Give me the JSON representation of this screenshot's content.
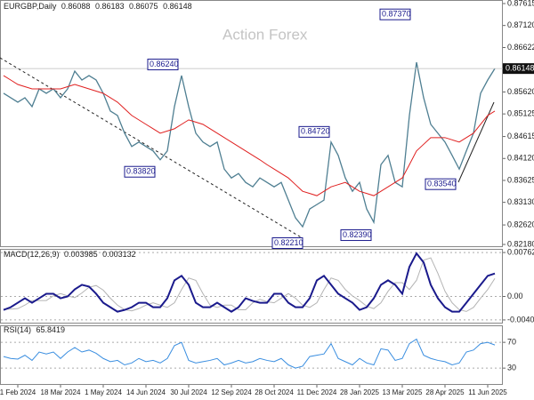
{
  "chart_data": [
    {
      "type": "line",
      "symbol": "EURGBP,Daily",
      "header_values": [
        0.86088,
        0.86183,
        0.86075,
        0.86148
      ],
      "watermark": "Action Forex",
      "categories": [
        null,
        null,
        "1 Feb 2024",
        null,
        null,
        null,
        null,
        null,
        "18 Mar 2024",
        null,
        null,
        null,
        null,
        null,
        "1 May 2024",
        null,
        null,
        null,
        null,
        null,
        "14 Jun 2024",
        null,
        null,
        null,
        null,
        null,
        "30 Jul 2024",
        null,
        null,
        null,
        null,
        null,
        "12 Sep 2024",
        null,
        null,
        null,
        null,
        null,
        "28 Oct 2024",
        null,
        null,
        null,
        null,
        null,
        "11 Dec 2024",
        null,
        null,
        null,
        null,
        null,
        "28 Jan 2025",
        null,
        null,
        null,
        null,
        null,
        "13 Mar 2025",
        null,
        null,
        null,
        null,
        null,
        "28 Apr 2025",
        null,
        null,
        null,
        null,
        null,
        "11 Jun 2025",
        null
      ],
      "series": [
        {
          "color": "#4f7f92",
          "values": [
            0.8559,
            0.8549,
            0.8539,
            0.8549,
            0.8529,
            0.8569,
            0.8559,
            0.8569,
            0.8549,
            0.8569,
            0.8609,
            0.8589,
            0.8599,
            0.8589,
            0.8559,
            0.8519,
            0.8509,
            0.8469,
            0.8439,
            0.8449,
            0.8439,
            0.8429,
            0.8409,
            0.8429,
            0.8529,
            0.8599,
            0.8529,
            0.8469,
            0.8449,
            0.8439,
            0.8449,
            0.8388,
            0.8368,
            0.8378,
            0.8358,
            0.8348,
            0.8368,
            0.8358,
            0.8348,
            0.8358,
            0.8318,
            0.8278,
            0.8258,
            0.8298,
            0.8308,
            0.8318,
            0.8449,
            0.8419,
            0.8368,
            0.8338,
            0.8358,
            0.8298,
            0.8268,
            0.8398,
            0.8419,
            0.8358,
            0.8348,
            0.8509,
            0.8629,
            0.8549,
            0.8489,
            0.8469,
            0.8449,
            0.8419,
            0.8388,
            0.8429,
            0.8469,
            0.8559,
            0.8589,
            0.86148
          ]
        },
        {
          "color": "#e02020",
          "values": [
            0.8599,
            0.8589,
            0.8579,
            0.8574,
            0.8569,
            0.8569,
            0.8569,
            0.8569,
            0.8569,
            0.8574,
            0.8579,
            0.8574,
            0.8569,
            0.8564,
            0.8559,
            0.8549,
            0.8539,
            0.8524,
            0.8509,
            0.8499,
            0.8489,
            0.8479,
            0.8469,
            0.8474,
            0.8479,
            0.8489,
            0.8499,
            0.8494,
            0.8489,
            0.8479,
            0.8469,
            0.8459,
            0.8449,
            0.8439,
            0.8429,
            0.8419,
            0.8409,
            0.8398,
            0.8388,
            0.8378,
            0.8368,
            0.8353,
            0.8338,
            0.8333,
            0.8328,
            0.8338,
            0.8348,
            0.8353,
            0.8358,
            0.8348,
            0.8338,
            0.8333,
            0.8328,
            0.8338,
            0.8348,
            0.8358,
            0.8368,
            0.8398,
            0.8429,
            0.8444,
            0.8459,
            0.8459,
            0.8459,
            0.8454,
            0.8449,
            0.8459,
            0.8469,
            0.8489,
            0.8509,
            0.8519
          ]
        }
      ],
      "ylim": [
        0.8212,
        0.87695
      ],
      "yticks": [
        0.87615,
        {
          "value": 0.8712,
          "label": "0.87120"
        },
        0.86622,
        {
          "value": 0.8562,
          "label": "0.85620"
        },
        0.85125,
        0.84615,
        {
          "value": 0.8412,
          "label": "0.84120"
        },
        0.83625,
        {
          "value": 0.8313,
          "label": "0.83130"
        },
        {
          "value": 0.8262,
          "label": "0.82620"
        },
        {
          "value": 0.8218,
          "label": "0.82180"
        }
      ],
      "annotations": [
        {
          "value": 0.8737,
          "label": "0.87370"
        },
        {
          "value": 0.8624,
          "label": "0.86240"
        },
        {
          "value": 0.8382,
          "label": "0.83820"
        },
        {
          "value": 0.8472,
          "label": "0.84720"
        },
        {
          "value": 0.8221,
          "label": "0.82210"
        },
        {
          "value": 0.8239,
          "label": "0.82390"
        },
        {
          "value": 0.8354,
          "label": "0.83540"
        }
      ]
    },
    {
      "type": "line",
      "title": "MACD(12,26,9)",
      "macd": {
        "color": "#1a1a8c",
        "values": [
          -0.00233,
          -0.00187,
          -0.00109,
          -0.00031,
          -0.00109,
          -0.00031,
          0.00047,
          0.00047,
          -0.00031,
          0,
          0.00124,
          0.00202,
          0.00171,
          0.00047,
          -0.00109,
          -0.00187,
          -0.00264,
          -0.00233,
          -0.00187,
          -0.00109,
          -0.00109,
          -0.00187,
          -0.00187,
          -0.00031,
          0.0028,
          0.00358,
          0.00202,
          -0.00109,
          -0.00187,
          -0.00187,
          -0.00109,
          -0.00187,
          -0.00264,
          -0.00187,
          -0.00031,
          -0.00078,
          -0.00109,
          -0.00109,
          0.00047,
          0.00047,
          -0.00109,
          -0.00187,
          -0.00187,
          -0.00031,
          0.0028,
          0.00358,
          0.00202,
          0.00047,
          -0.00031,
          -0.00109,
          -0.00233,
          -0.00187,
          -0.00031,
          0.00202,
          0.0028,
          0.00202,
          0.00047,
          0.00513,
          0.00747,
          0.00591,
          0.00202,
          -0.00031,
          -0.00187,
          -0.00264,
          -0.00264,
          -0.00109,
          0.00047,
          0.00202,
          0.00358,
          0.003985
        ]
      },
      "signal": {
        "color": "#b4b4b4",
        "values": [
          -0.0022,
          -0.0022,
          -0.0021,
          -0.0015,
          -0.0007,
          -0.0007,
          -0.0007,
          0.0001,
          0.0005,
          0.0001,
          -0.0002,
          0.0006,
          0.0016,
          0.0019,
          0.0011,
          -0.0003,
          -0.0015,
          -0.0023,
          -0.0025,
          -0.0021,
          -0.0015,
          -0.0011,
          -0.0015,
          -0.0019,
          -0.0011,
          0.0012,
          0.0032,
          0.0028,
          0.0005,
          -0.0015,
          -0.0019,
          -0.0015,
          -0.0015,
          -0.0023,
          -0.0023,
          -0.0011,
          -0.0005,
          -0.0009,
          -0.0011,
          -0.0003,
          0.0005,
          -0.0003,
          -0.0015,
          -0.0019,
          -0.0011,
          0.0012,
          0.0032,
          0.0028,
          0.0012,
          0.0001,
          -0.0007,
          -0.0017,
          -0.0021,
          -0.0011,
          0.0009,
          0.0024,
          0.0024,
          0.0012,
          0.0028,
          0.0063,
          0.0067,
          0.004,
          0.0009,
          -0.0011,
          -0.0023,
          -0.0026,
          -0.0019,
          -0.0003,
          0.0012,
          0.003132
        ]
      },
      "ylim": [
        -0.0047,
        0.0081
      ],
      "yticks": [
        0.007623,
        {
          "value": 0,
          "label": "0.00"
        },
        -0.004073
      ]
    },
    {
      "type": "line",
      "title": "RSI(14)",
      "color": "#3a8ee0",
      "values": [
        48,
        45,
        44,
        50,
        42,
        55,
        52,
        55,
        45,
        55,
        62,
        55,
        58,
        53,
        45,
        40,
        42,
        35,
        38,
        45,
        40,
        42,
        38,
        45,
        65,
        70,
        42,
        38,
        40,
        42,
        45,
        35,
        38,
        42,
        38,
        40,
        45,
        42,
        40,
        45,
        35,
        30,
        33,
        48,
        50,
        52,
        68,
        45,
        40,
        35,
        45,
        38,
        35,
        60,
        58,
        42,
        45,
        68,
        75,
        50,
        45,
        42,
        40,
        35,
        38,
        55,
        58,
        68,
        70,
        65.8419
      ],
      "ylim": [
        4,
        95
      ],
      "yticks": [
        70,
        30
      ]
    }
  ]
}
